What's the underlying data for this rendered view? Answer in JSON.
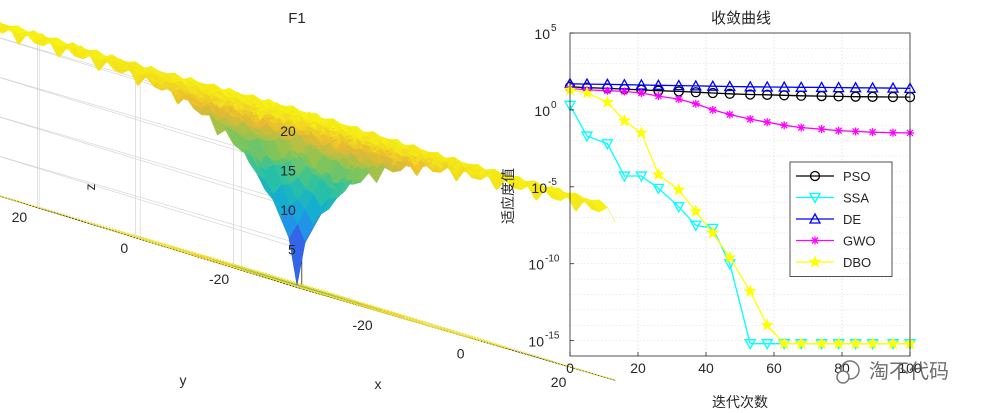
{
  "chart_data": [
    {
      "type": "surface",
      "title": "F1",
      "xlabel": "x",
      "ylabel": "y",
      "zlabel": "z",
      "xticks": [
        "-20",
        "0",
        "20"
      ],
      "yticks": [
        "20",
        "0",
        "-20"
      ],
      "zticks": [
        "5",
        "10",
        "15",
        "20"
      ],
      "xlim": [
        -32,
        32
      ],
      "ylim": [
        -32,
        32
      ],
      "zlim": [
        0,
        22
      ],
      "colormap": "parula"
    },
    {
      "type": "line",
      "title": "收敛曲线",
      "xlabel": "迭代次数",
      "ylabel": "适应度值",
      "xlim": [
        0,
        100
      ],
      "ylim_log10": [
        -16,
        5
      ],
      "yscale": "log",
      "grid": true,
      "xticks": [
        "0",
        "20",
        "40",
        "60",
        "80",
        "100"
      ],
      "yticks": [
        {
          "base": "10",
          "exp": "5",
          "value": 5
        },
        {
          "base": "10",
          "exp": "0",
          "value": 0
        },
        {
          "base": "10",
          "exp": "-5",
          "value": -5
        },
        {
          "base": "10",
          "exp": "-10",
          "value": -10
        },
        {
          "base": "10",
          "exp": "-15",
          "value": -15
        }
      ],
      "legend_position": "right-middle",
      "x": [
        0,
        5,
        11,
        16,
        21,
        26,
        32,
        37,
        42,
        47,
        53,
        58,
        63,
        68,
        74,
        79,
        84,
        89,
        95,
        100
      ],
      "series": [
        {
          "name": "PSO",
          "color": "#000000",
          "marker": "circle",
          "log10_values": [
            1.5,
            1.45,
            1.4,
            1.35,
            1.3,
            1.25,
            1.2,
            1.15,
            1.1,
            1.05,
            1.0,
            0.98,
            0.95,
            0.92,
            0.9,
            0.88,
            0.86,
            0.85,
            0.84,
            0.83
          ]
        },
        {
          "name": "SSA",
          "color": "#00FFFF",
          "marker": "triangle-down",
          "log10_values": [
            0.3,
            -1.7,
            -2.2,
            -4.3,
            -4.3,
            -5.1,
            -6.3,
            -7.5,
            -7.7,
            -10.0,
            -15.2,
            -15.2,
            -15.2,
            -15.2,
            -15.2,
            -15.2,
            -15.2,
            -15.2,
            -15.2,
            -15.2
          ]
        },
        {
          "name": "DE",
          "color": "#0000FF",
          "marker": "triangle-up",
          "log10_values": [
            1.7,
            1.68,
            1.66,
            1.64,
            1.62,
            1.6,
            1.58,
            1.56,
            1.54,
            1.52,
            1.5,
            1.49,
            1.48,
            1.47,
            1.46,
            1.45,
            1.44,
            1.43,
            1.42,
            1.4
          ]
        },
        {
          "name": "GWO",
          "color": "#FF00FF",
          "marker": "asterisk",
          "log10_values": [
            1.4,
            1.3,
            1.25,
            1.2,
            1.1,
            0.9,
            0.7,
            0.4,
            0.0,
            -0.3,
            -0.6,
            -0.8,
            -1.0,
            -1.15,
            -1.25,
            -1.35,
            -1.4,
            -1.45,
            -1.48,
            -1.5
          ]
        },
        {
          "name": "DBO",
          "color": "#FFFF00",
          "marker": "pentagram",
          "log10_values": [
            1.3,
            1.1,
            0.5,
            -0.7,
            -1.5,
            -4.2,
            -5.2,
            -6.6,
            -8.0,
            -9.6,
            -11.8,
            -14.0,
            -15.2,
            -15.2,
            -15.2,
            -15.2,
            -15.2,
            -15.2,
            -15.2,
            -15.2
          ]
        }
      ]
    }
  ],
  "watermark": "淘不代码"
}
